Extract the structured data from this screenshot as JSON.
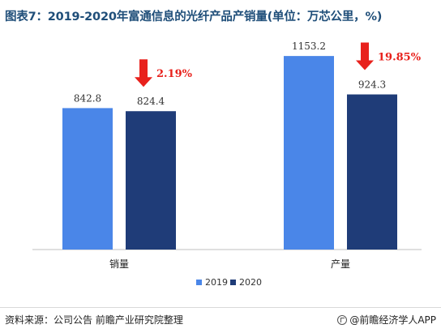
{
  "title": "图表7：2019-2020年富通信息的光纤产品产销量(单位：万芯公里，%)",
  "chart_data": {
    "type": "bar",
    "categories": [
      "销量",
      "产量"
    ],
    "series": [
      {
        "name": "2019",
        "values": [
          842.8,
          1153.2
        ],
        "color": "#4a86e8"
      },
      {
        "name": "2020",
        "values": [
          824.4,
          924.3
        ],
        "color": "#1f3c78"
      }
    ],
    "value_labels": [
      [
        "842.8",
        "1153.2"
      ],
      [
        "824.4",
        "924.3"
      ]
    ],
    "change_labels": [
      "2.19%",
      "19.85%"
    ],
    "change_direction": "down",
    "change_color": "#e8211c",
    "ylim": [
      0,
      1400
    ],
    "grid": false,
    "legend": "bottom-center"
  },
  "footer": {
    "source": "资料来源：公司公告 前瞻产业研究院整理",
    "brand": "@前瞻经济学人APP"
  }
}
